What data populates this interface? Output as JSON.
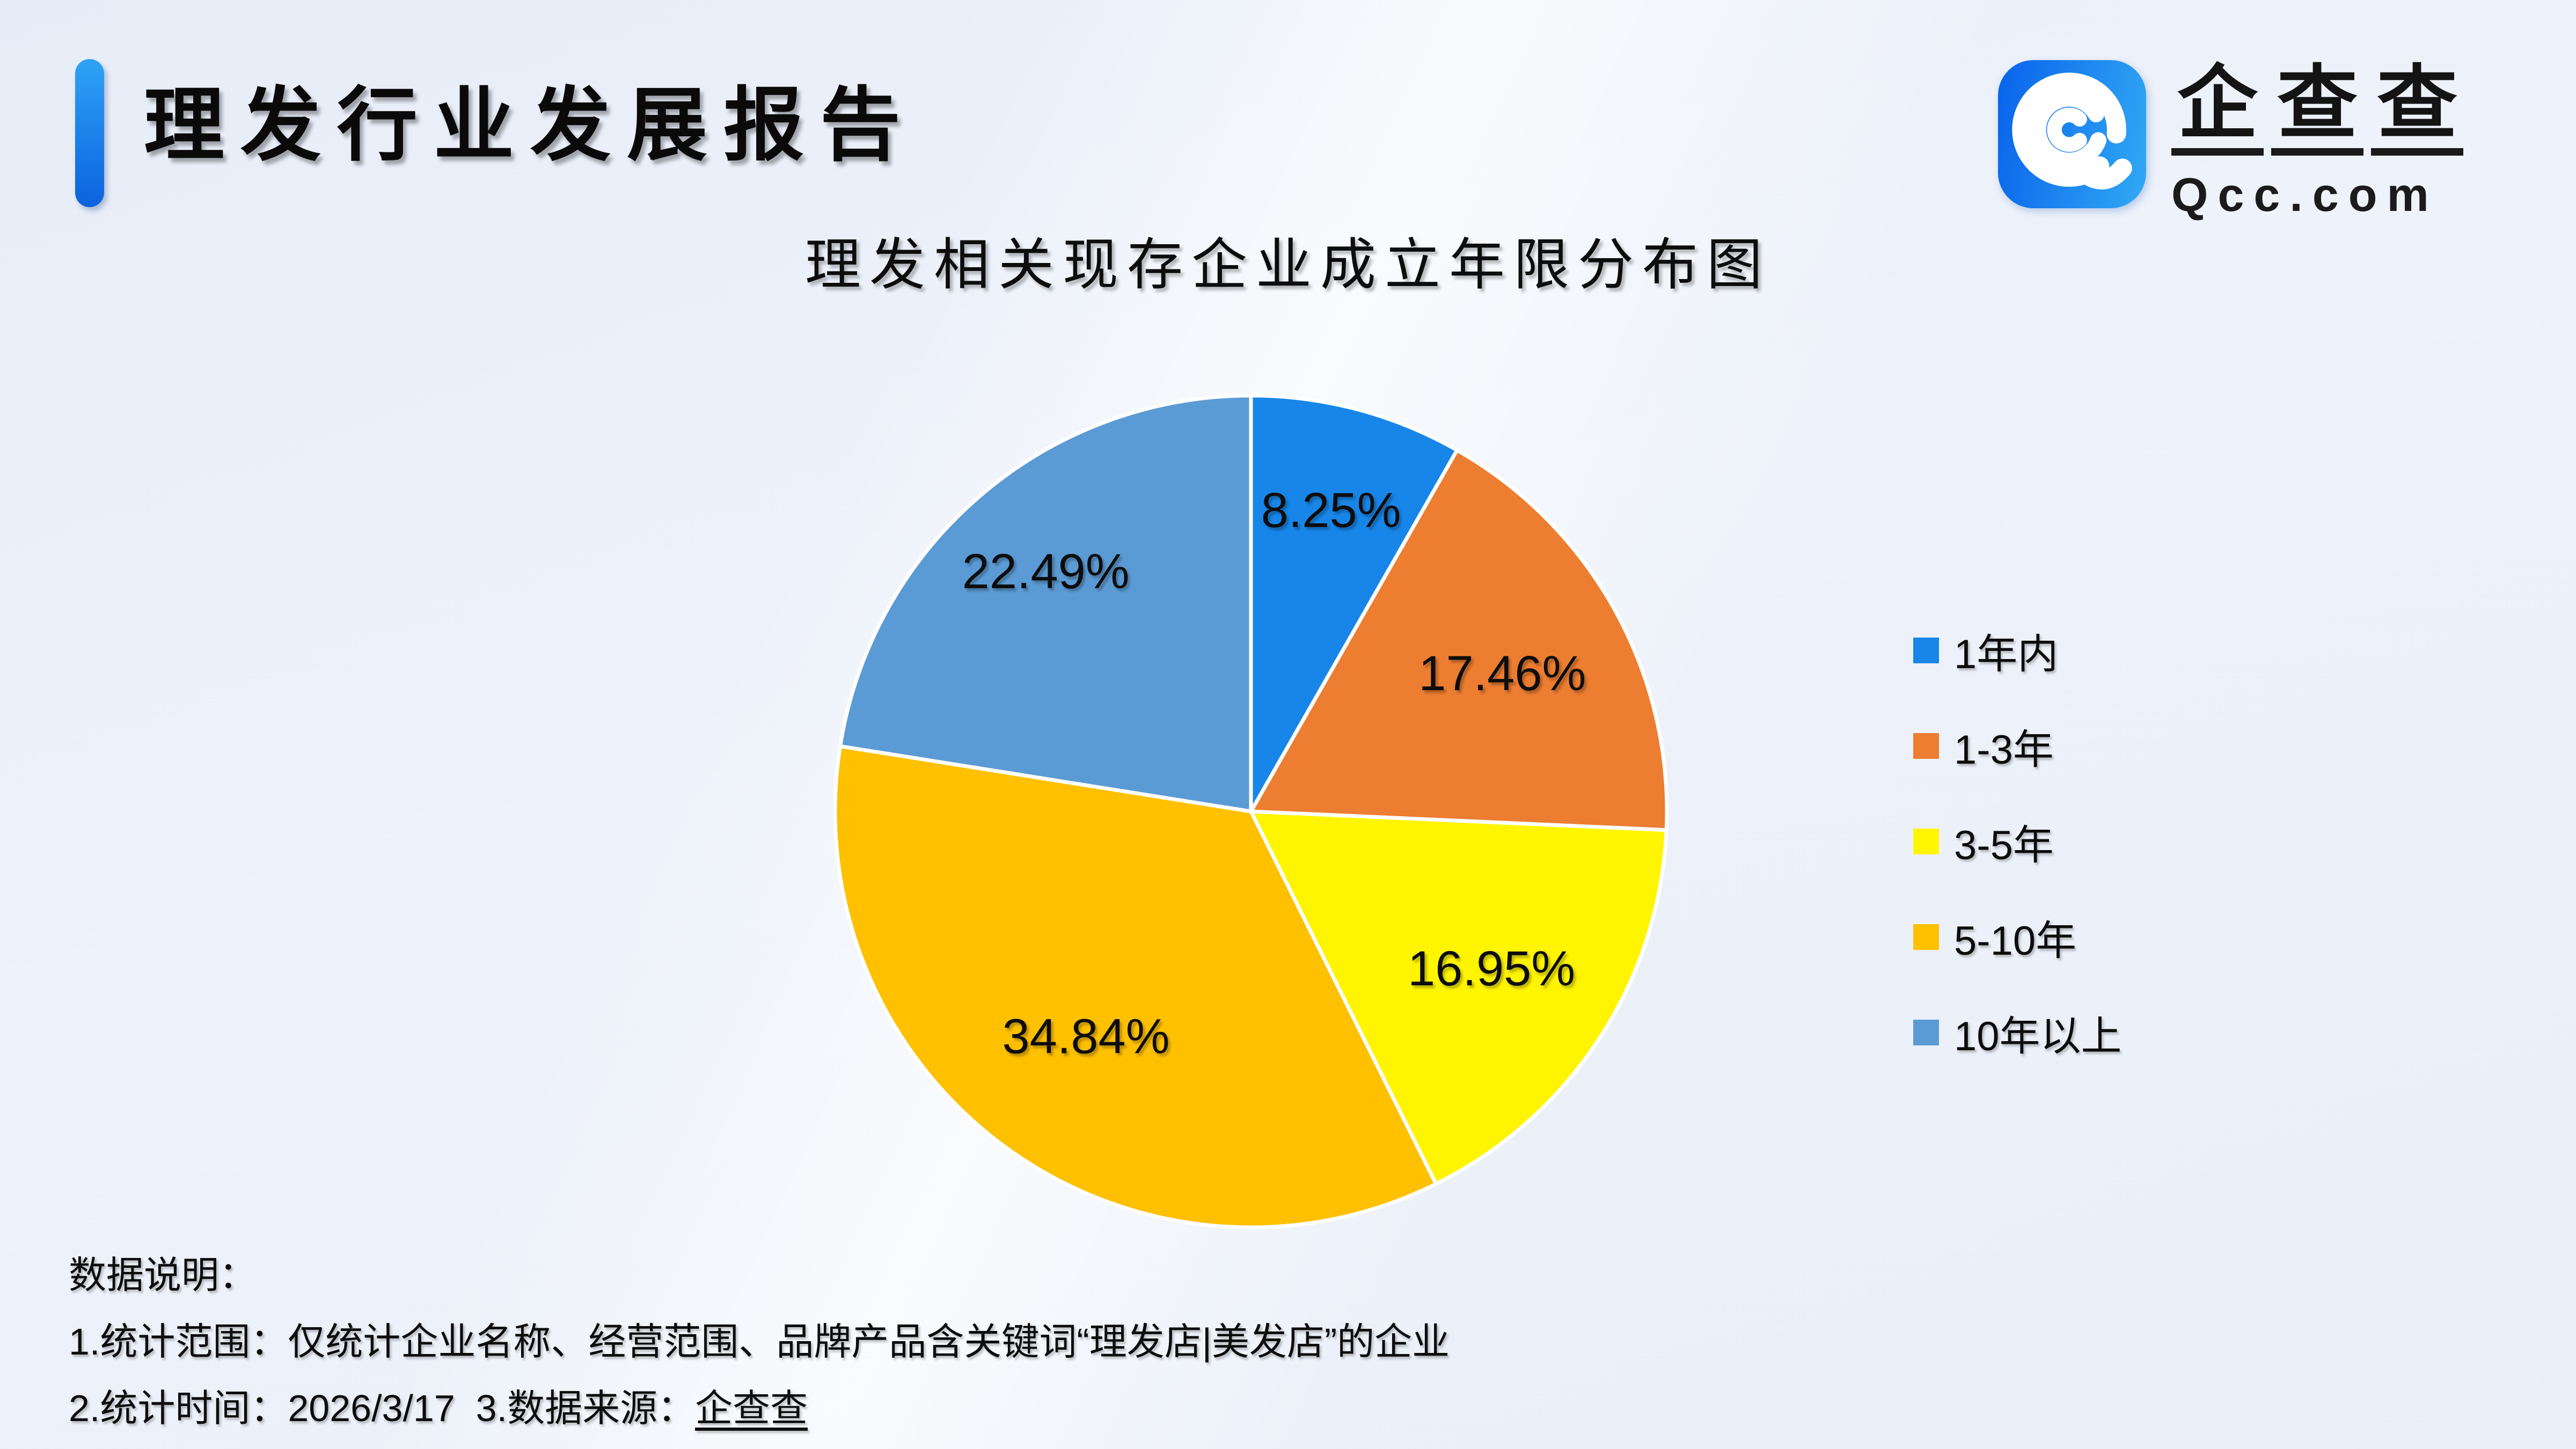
{
  "page": {
    "report_title": "理发行业发展报告"
  },
  "logo": {
    "brand_chars": [
      "企",
      "查",
      "查"
    ],
    "brand_name": "企查查",
    "domain": "Qcc.com",
    "icon": "qcc-concentric-c-rings-icon",
    "tile_color_left": "#0B66EC",
    "tile_color_right": "#2FA6F3"
  },
  "chart_data": {
    "type": "pie",
    "title": "理发相关现存企业成立年限分布图",
    "start_angle_deg": 0,
    "direction": "clockwise",
    "legend_position": "right",
    "grid": false,
    "value_suffix": "%",
    "series": [
      {
        "label": "1年内",
        "value": 8.25,
        "color": "#1886E9",
        "label_r": 0.75
      },
      {
        "label": "1-3年",
        "value": 17.46,
        "color": "#ED7D31",
        "label_r": 0.69
      },
      {
        "label": "3-5年",
        "value": 16.95,
        "color": "#FFF500",
        "label_r": 0.69
      },
      {
        "label": "5-10年",
        "value": 34.84,
        "color": "#FFC000",
        "label_r": 0.67
      },
      {
        "label": "10年以上",
        "value": 22.49,
        "color": "#5B9BD5",
        "label_r": 0.76
      }
    ]
  },
  "footer": {
    "heading": "数据说明：",
    "line1": "1.统计范围：仅统计企业名称、经营范围、品牌产品含关键词“理发店|美发店”的企业",
    "line2_prefix": "2.统计时间：2026/3/17  3.数据来源：",
    "line2_source": "企查查"
  },
  "colors": {
    "background": "#EEF2FA",
    "accent_bar_top": "#2EA3F6",
    "accent_bar_bottom": "#0B62DE",
    "text": "#111111"
  }
}
